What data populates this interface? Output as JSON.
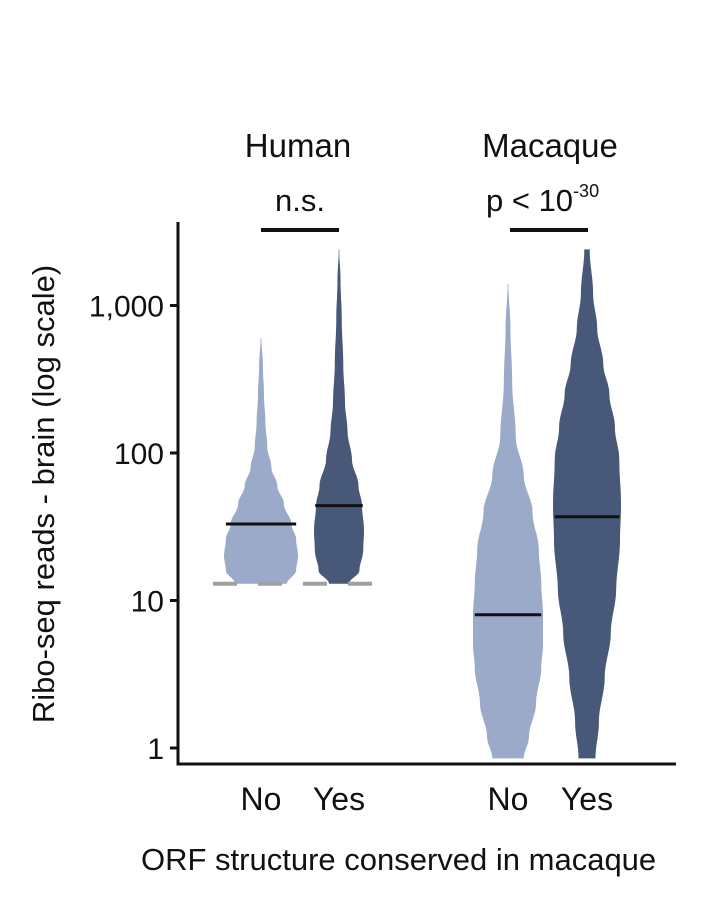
{
  "chart_data": {
    "type": "violin",
    "xlabel": "ORF structure conserved in macaque",
    "ylabel": "Ribo-seq reads - brain (log scale)",
    "yscale": "log",
    "ylim": [
      0.85,
      3500
    ],
    "yticks": [
      {
        "value": 1,
        "label": "1"
      },
      {
        "value": 10,
        "label": "10"
      },
      {
        "value": 100,
        "label": "100"
      },
      {
        "value": 1000,
        "label": "1,000"
      }
    ],
    "groups": [
      {
        "name": "Human",
        "test": "n.s.",
        "threshold": 13,
        "violins": [
          {
            "category": "No",
            "color": "#9aaac8",
            "median": 33,
            "min": 13,
            "max": 600,
            "profile": [
              [
                13,
                0.7
              ],
              [
                16,
                0.95
              ],
              [
                20,
                1.0
              ],
              [
                26,
                0.95
              ],
              [
                33,
                0.82
              ],
              [
                45,
                0.62
              ],
              [
                60,
                0.44
              ],
              [
                80,
                0.28
              ],
              [
                110,
                0.17
              ],
              [
                160,
                0.12
              ],
              [
                250,
                0.08
              ],
              [
                400,
                0.05
              ],
              [
                600,
                0.01
              ]
            ]
          },
          {
            "category": "Yes",
            "color": "#475879",
            "median": 44,
            "min": 13,
            "max": 2400,
            "profile": [
              [
                13,
                0.4
              ],
              [
                16,
                0.82
              ],
              [
                22,
                0.97
              ],
              [
                30,
                1.0
              ],
              [
                44,
                0.92
              ],
              [
                60,
                0.78
              ],
              [
                90,
                0.52
              ],
              [
                140,
                0.34
              ],
              [
                220,
                0.24
              ],
              [
                400,
                0.17
              ],
              [
                800,
                0.11
              ],
              [
                1500,
                0.06
              ],
              [
                2400,
                0.01
              ]
            ]
          }
        ]
      },
      {
        "name": "Macaque",
        "test_text": "p < 10",
        "test_exponent": "-30",
        "violins": [
          {
            "category": "No",
            "color": "#9aaac8",
            "median": 8,
            "min": 0.85,
            "max": 1400,
            "profile": [
              [
                0.85,
                0.45
              ],
              [
                1.2,
                0.6
              ],
              [
                2,
                0.8
              ],
              [
                3.5,
                0.95
              ],
              [
                5,
                1.0
              ],
              [
                8,
                1.0
              ],
              [
                13,
                0.95
              ],
              [
                22,
                0.88
              ],
              [
                40,
                0.7
              ],
              [
                70,
                0.45
              ],
              [
                130,
                0.22
              ],
              [
                300,
                0.12
              ],
              [
                700,
                0.07
              ],
              [
                1400,
                0.01
              ]
            ]
          },
          {
            "category": "Yes",
            "color": "#475879",
            "median": 37,
            "min": 0.85,
            "max": 2400,
            "profile": [
              [
                0.85,
                0.25
              ],
              [
                1.5,
                0.35
              ],
              [
                3,
                0.52
              ],
              [
                6,
                0.7
              ],
              [
                12,
                0.86
              ],
              [
                25,
                0.97
              ],
              [
                45,
                1.0
              ],
              [
                90,
                0.95
              ],
              [
                150,
                0.82
              ],
              [
                250,
                0.66
              ],
              [
                400,
                0.48
              ],
              [
                700,
                0.3
              ],
              [
                1200,
                0.18
              ],
              [
                2400,
                0.08
              ]
            ]
          }
        ]
      }
    ]
  }
}
